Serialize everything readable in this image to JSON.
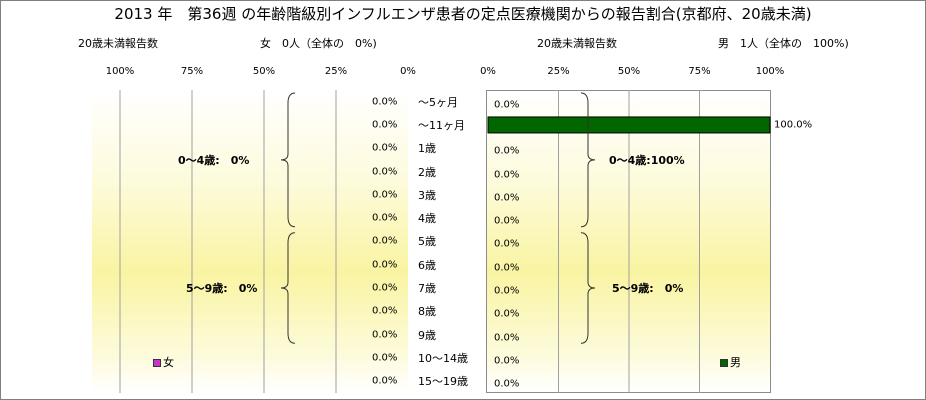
{
  "title": "2013 年　第36週 の年齢階級別インフルエンザ患者の定点医療機関からの報告割合(京都府、20歳未満)",
  "left_panel": {
    "count_label": "20歳未満報告数",
    "summary": "女　0人（全体の　0%)",
    "legend_label": "女",
    "legend_color": "#cc33cc",
    "axis_ticks": [
      "100%",
      "75%",
      "50%",
      "25%",
      "0%"
    ],
    "groups": [
      {
        "label": "0～4歳:　0%"
      },
      {
        "label": "5～9歳:　0%"
      }
    ]
  },
  "right_panel": {
    "count_label": "20歳未満報告数",
    "summary": "男　1人（全体の　100%)",
    "legend_label": "男",
    "legend_color": "#006600",
    "axis_ticks": [
      "0%",
      "25%",
      "50%",
      "75%",
      "100%"
    ],
    "groups": [
      {
        "label": "0～4歳:100%"
      },
      {
        "label": "5～9歳:　0%"
      }
    ]
  },
  "chart_data": {
    "type": "bar",
    "orientation": "horizontal",
    "title": "2013 年　第36週 の年齢階級別インフルエンザ患者の定点医療機関からの報告割合(京都府、20歳未満)",
    "categories": [
      "～5ヶ月",
      "～11ヶ月",
      "1歳",
      "2歳",
      "3歳",
      "4歳",
      "5歳",
      "6歳",
      "7歳",
      "8歳",
      "9歳",
      "10～14歳",
      "15～19歳"
    ],
    "xlim": [
      0,
      100
    ],
    "grid": true,
    "series": [
      {
        "name": "女",
        "color": "#cc33cc",
        "values": [
          0,
          0,
          0,
          0,
          0,
          0,
          0,
          0,
          0,
          0,
          0,
          0,
          0
        ],
        "value_labels": [
          "0.0%",
          "0.0%",
          "0.0%",
          "0.0%",
          "0.0%",
          "0.0%",
          "0.0%",
          "0.0%",
          "0.0%",
          "0.0%",
          "0.0%",
          "0.0%",
          "0.0%"
        ]
      },
      {
        "name": "男",
        "color": "#006600",
        "values": [
          0,
          100,
          0,
          0,
          0,
          0,
          0,
          0,
          0,
          0,
          0,
          0,
          0
        ],
        "value_labels": [
          "0.0%",
          "100.0%",
          "0.0%",
          "0.0%",
          "0.0%",
          "0.0%",
          "0.0%",
          "0.0%",
          "0.0%",
          "0.0%",
          "0.0%",
          "0.0%",
          "0.0%"
        ]
      }
    ]
  }
}
